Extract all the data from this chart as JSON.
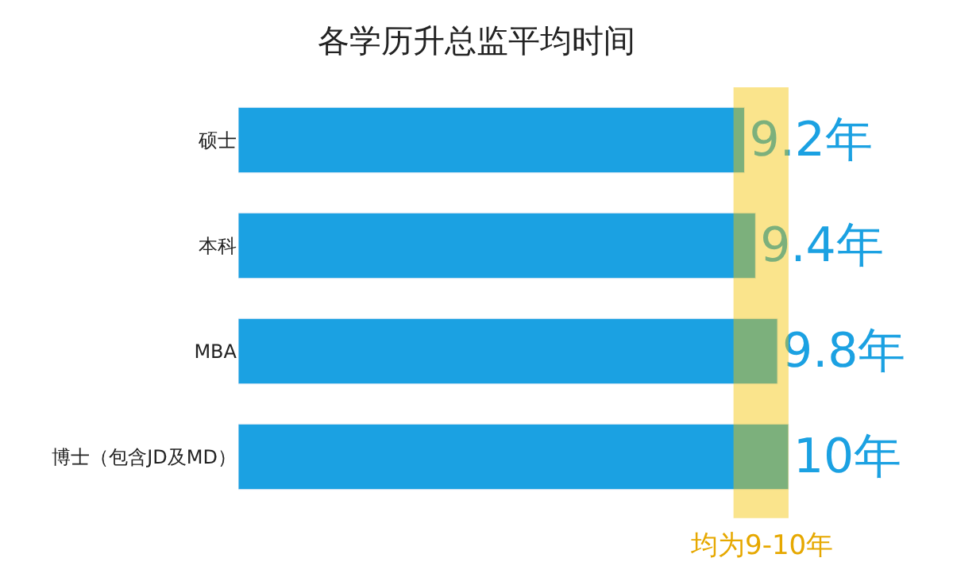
{
  "chart_data": {
    "type": "bar",
    "orientation": "horizontal",
    "title": "各学历升总监平均时间",
    "categories": [
      "硕士",
      "本科",
      "MBA",
      "博士（包含JD及MD）"
    ],
    "values": [
      9.2,
      9.4,
      9.8,
      10
    ],
    "color": "#1ba1e2",
    "value_labels": [
      "9.2年",
      "9.4年",
      "9.8年",
      "10年"
    ],
    "bands": [
      {
        "axis": "x",
        "from": 9,
        "to": 10,
        "label": "均为9-10年",
        "color": "#f5c400"
      }
    ],
    "tick_labels": "y",
    "legend": false
  }
}
